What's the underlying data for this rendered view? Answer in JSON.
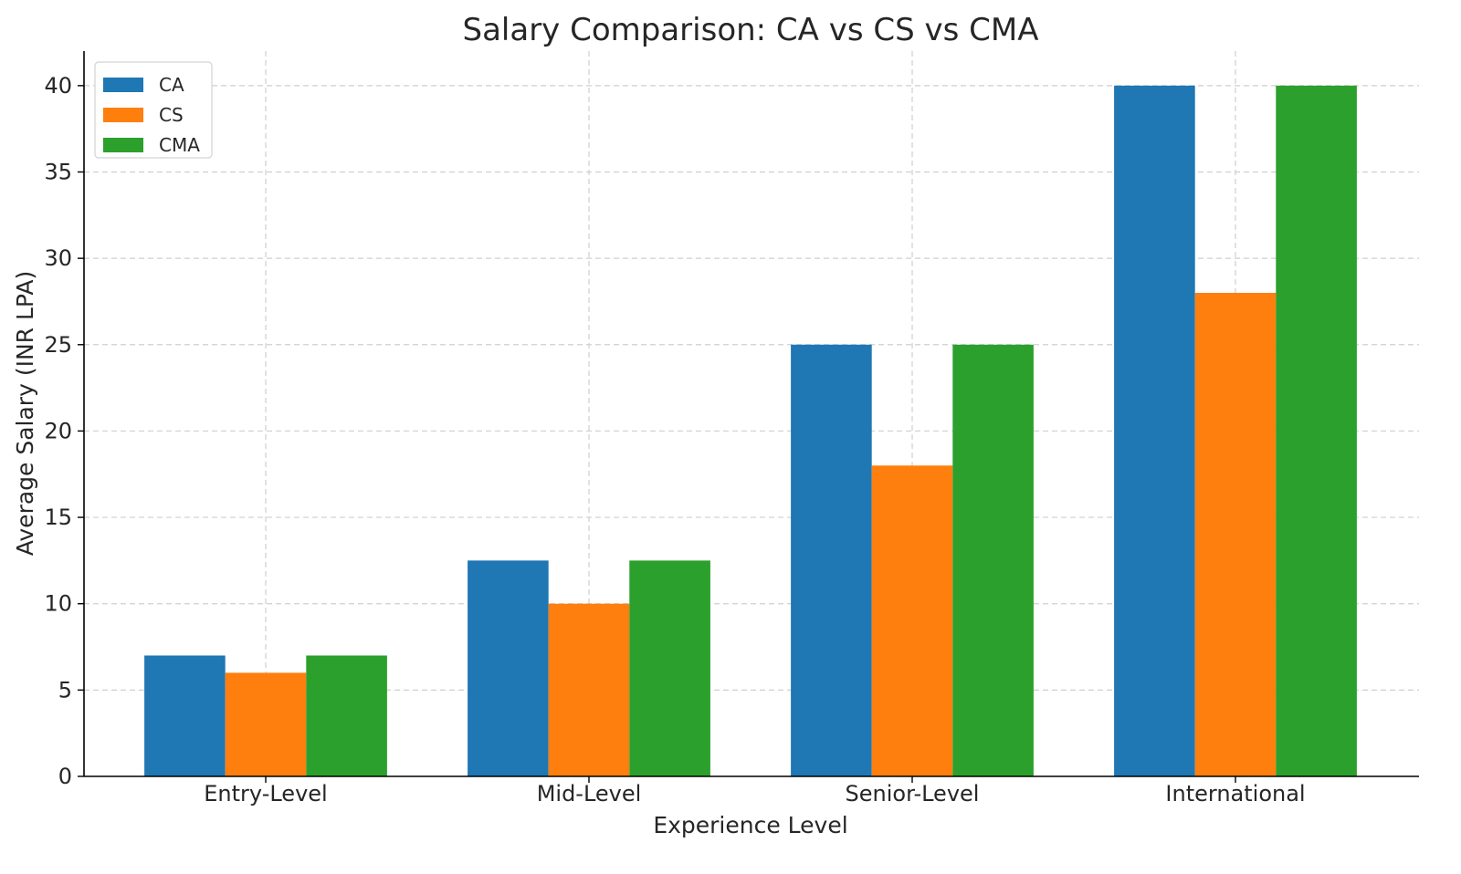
{
  "chart_data": {
    "type": "bar",
    "title": "Salary Comparison: CA vs CS vs CMA",
    "xlabel": "Experience Level",
    "ylabel": "Average Salary (INR LPA)",
    "categories": [
      "Entry-Level",
      "Mid-Level",
      "Senior-Level",
      "International"
    ],
    "series": [
      {
        "name": "CA",
        "values": [
          7,
          12.5,
          25,
          40
        ],
        "color": "#1f77b4"
      },
      {
        "name": "CS",
        "values": [
          6,
          10,
          18,
          28
        ],
        "color": "#ff7f0e"
      },
      {
        "name": "CMA",
        "values": [
          7,
          12.5,
          25,
          40
        ],
        "color": "#2ca02c"
      }
    ],
    "ylim": [
      0,
      42
    ],
    "yticks": [
      0,
      5,
      10,
      15,
      20,
      25,
      30,
      35,
      40
    ],
    "grid": true,
    "legend_position": "top-left"
  }
}
